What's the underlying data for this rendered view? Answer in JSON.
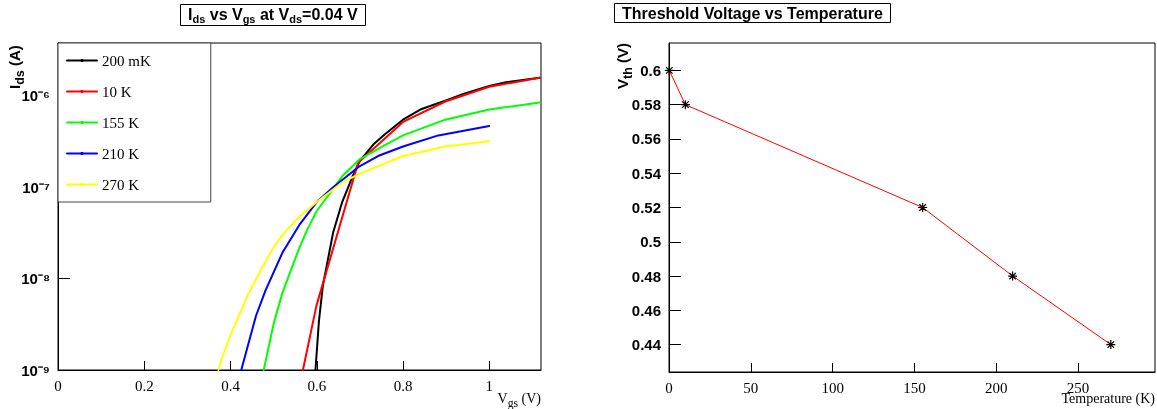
{
  "chart_data": [
    {
      "type": "line",
      "title": "I$_{ds}$ vs V$_{gs}$ at V$_{ds}$=0.04 V",
      "xlabel": "V$_{gs}$ (V)",
      "ylabel": "I$_{ds}$ (A)",
      "log": "y",
      "legend": "top left",
      "xlim": [
        0,
        1.12
      ],
      "xticks": [
        0,
        0.2,
        0.4,
        0.6,
        0.8,
        1
      ],
      "ylim": [
        1e-09,
        3.8e-06
      ],
      "yticks": [
        {
          "value": 1e-09,
          "label": "10⁻⁹"
        },
        {
          "value": 1e-08,
          "label": "10⁻⁸"
        },
        {
          "value": 1e-07,
          "label": "10⁻⁷"
        },
        {
          "value": 1e-06,
          "label": "10⁻⁶"
        }
      ],
      "series": [
        {
          "name": "200 mK",
          "color": "#000000",
          "x": [
            0.597,
            0.605,
            0.614,
            0.638,
            0.659,
            0.684,
            0.7,
            0.733,
            0.758,
            0.8,
            0.84,
            0.898,
            0.94,
            1.0,
            1.039,
            1.117
          ],
          "values": [
            1e-09,
            3.4e-09,
            8.3e-09,
            3.2e-08,
            6.9e-08,
            1.35e-07,
            1.95e-07,
            3e-07,
            3.8e-07,
            5.5e-07,
            7.1e-07,
            8.9e-07,
            1.05e-06,
            1.29e-06,
            1.41e-06,
            1.58e-06
          ]
        },
        {
          "name": "10 K",
          "color": "#ff0000",
          "x": [
            0.568,
            0.599,
            0.696,
            0.8,
            0.898,
            1.0,
            1.117
          ],
          "values": [
            1e-09,
            5e-09,
            1.86e-07,
            5.2e-07,
            8.7e-07,
            1.26e-06,
            1.58e-06
          ]
        },
        {
          "name": "155 K",
          "color": "#00ff00",
          "x": [
            0.477,
            0.5,
            0.52,
            0.539,
            0.56,
            0.58,
            0.6,
            0.634,
            0.659,
            0.7,
            0.758,
            0.8,
            0.898,
            1.0,
            1.117
          ],
          "values": [
            1e-09,
            3.2e-09,
            6.9e-09,
            1.2e-08,
            2.2e-08,
            3.6e-08,
            5.5e-08,
            9.1e-08,
            1.32e-07,
            2.04e-07,
            2.9e-07,
            3.7e-07,
            5.5e-07,
            7.1e-07,
            8.5e-07
          ]
        },
        {
          "name": "210 K",
          "color": "#0000ff",
          "x": [
            0.425,
            0.459,
            0.481,
            0.521,
            0.56,
            0.6,
            0.638,
            0.696,
            0.742,
            0.8,
            0.882,
            1.0
          ],
          "values": [
            1e-09,
            3.9e-09,
            7.4e-09,
            1.95e-08,
            3.9e-08,
            6.9e-08,
            1e-07,
            1.66e-07,
            2.2e-07,
            2.8e-07,
            3.7e-07,
            4.7e-07
          ]
        },
        {
          "name": "270 K",
          "color": "#ffff00",
          "x": [
            0.372,
            0.38,
            0.4,
            0.421,
            0.44,
            0.461,
            0.48,
            0.5,
            0.52,
            0.56,
            0.6,
            0.659,
            0.7,
            0.8,
            0.898,
            1.0
          ],
          "values": [
            1e-09,
            1.35e-09,
            2.4e-09,
            4.1e-09,
            6.6e-09,
            1.03e-08,
            1.5e-08,
            2.2e-08,
            3e-08,
            4.8e-08,
            6.9e-08,
            1.13e-07,
            1.41e-07,
            2.2e-07,
            2.8e-07,
            3.2e-07
          ]
        }
      ]
    },
    {
      "type": "line",
      "title": "Threshold Voltage vs Temperature",
      "xlabel": "Temperature (K)",
      "ylabel": "V$_{th}$ (V)",
      "marker": "cross",
      "xlim": [
        0,
        297
      ],
      "xticks": [
        0,
        50,
        100,
        150,
        200,
        250
      ],
      "ylim": [
        0.424,
        0.616
      ],
      "yticks": [
        0.44,
        0.46,
        0.48,
        0.5,
        0.52,
        0.54,
        0.56,
        0.58,
        0.6
      ],
      "series": [
        {
          "color": "#ff0000",
          "x": [
            0.2,
            10,
            155,
            210,
            270
          ],
          "values": [
            0.6,
            0.58,
            0.52,
            0.48,
            0.44
          ]
        }
      ]
    }
  ]
}
